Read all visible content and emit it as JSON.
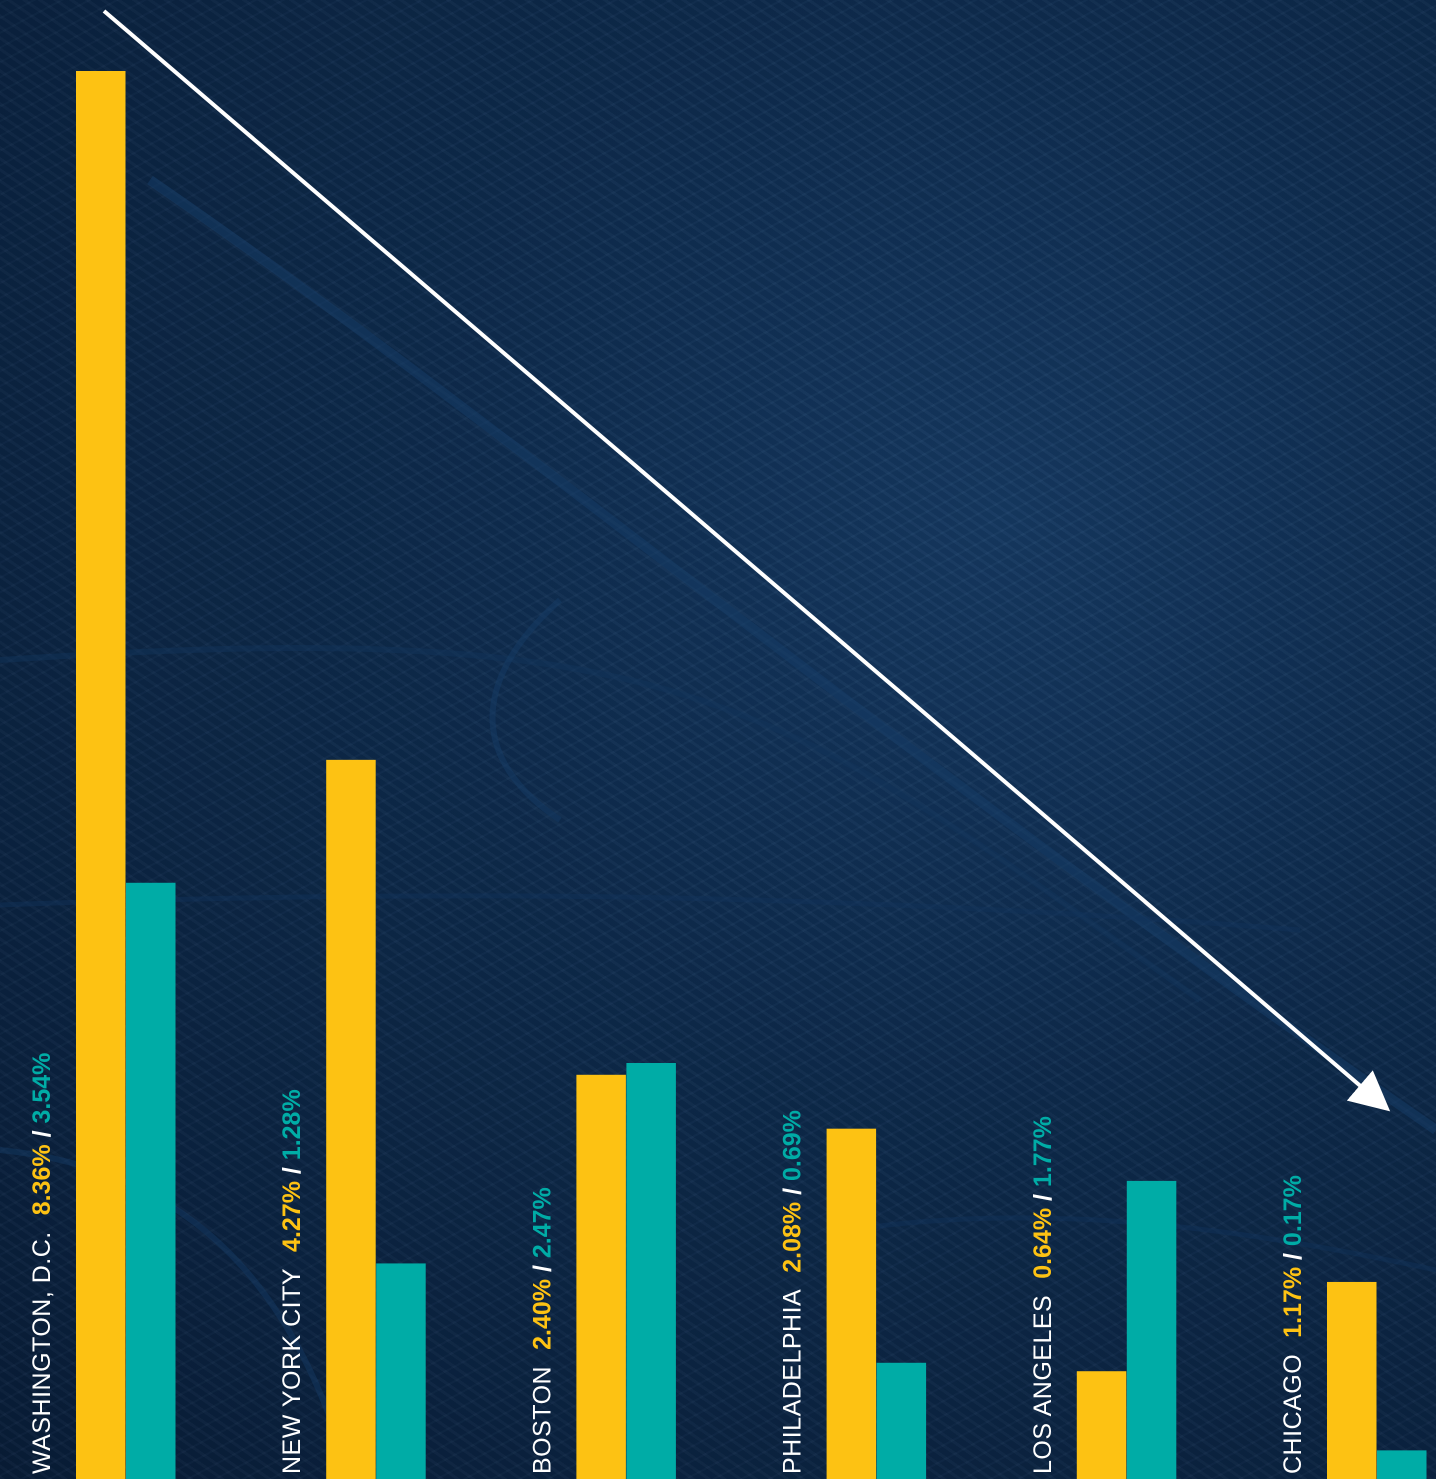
{
  "colors": {
    "background": "#0d2a4c",
    "series_a": "#fdc213",
    "series_b": "#00aca6",
    "label": "#ffffff",
    "trend_arrow": "#ffffff"
  },
  "chart_data": {
    "type": "bar",
    "title": "",
    "xlabel": "",
    "ylabel": "",
    "ylim": [
      0,
      8.36
    ],
    "grid": false,
    "legend": "none",
    "orientation": "labels-rotated-vertical",
    "separator": "/",
    "categories": [
      "WASHINGTON, D.C.",
      "NEW YORK CITY",
      "BOSTON",
      "PHILADELPHIA",
      "LOS ANGELES",
      "CHICAGO"
    ],
    "series": [
      {
        "values": [
          8.36,
          4.27,
          2.4,
          2.08,
          0.64,
          1.17
        ],
        "labels": [
          "8.36%",
          "4.27%",
          "2.40%",
          "2.08%",
          "0.64%",
          "1.17%"
        ]
      },
      {
        "values": [
          3.54,
          1.28,
          2.47,
          0.69,
          1.77,
          0.17
        ],
        "labels": [
          "3.54%",
          "1.28%",
          "2.47%",
          "0.69%",
          "1.77%",
          "0.17%"
        ]
      }
    ],
    "annotations": [
      {
        "type": "trend-arrow",
        "direction": "down-right"
      }
    ]
  }
}
